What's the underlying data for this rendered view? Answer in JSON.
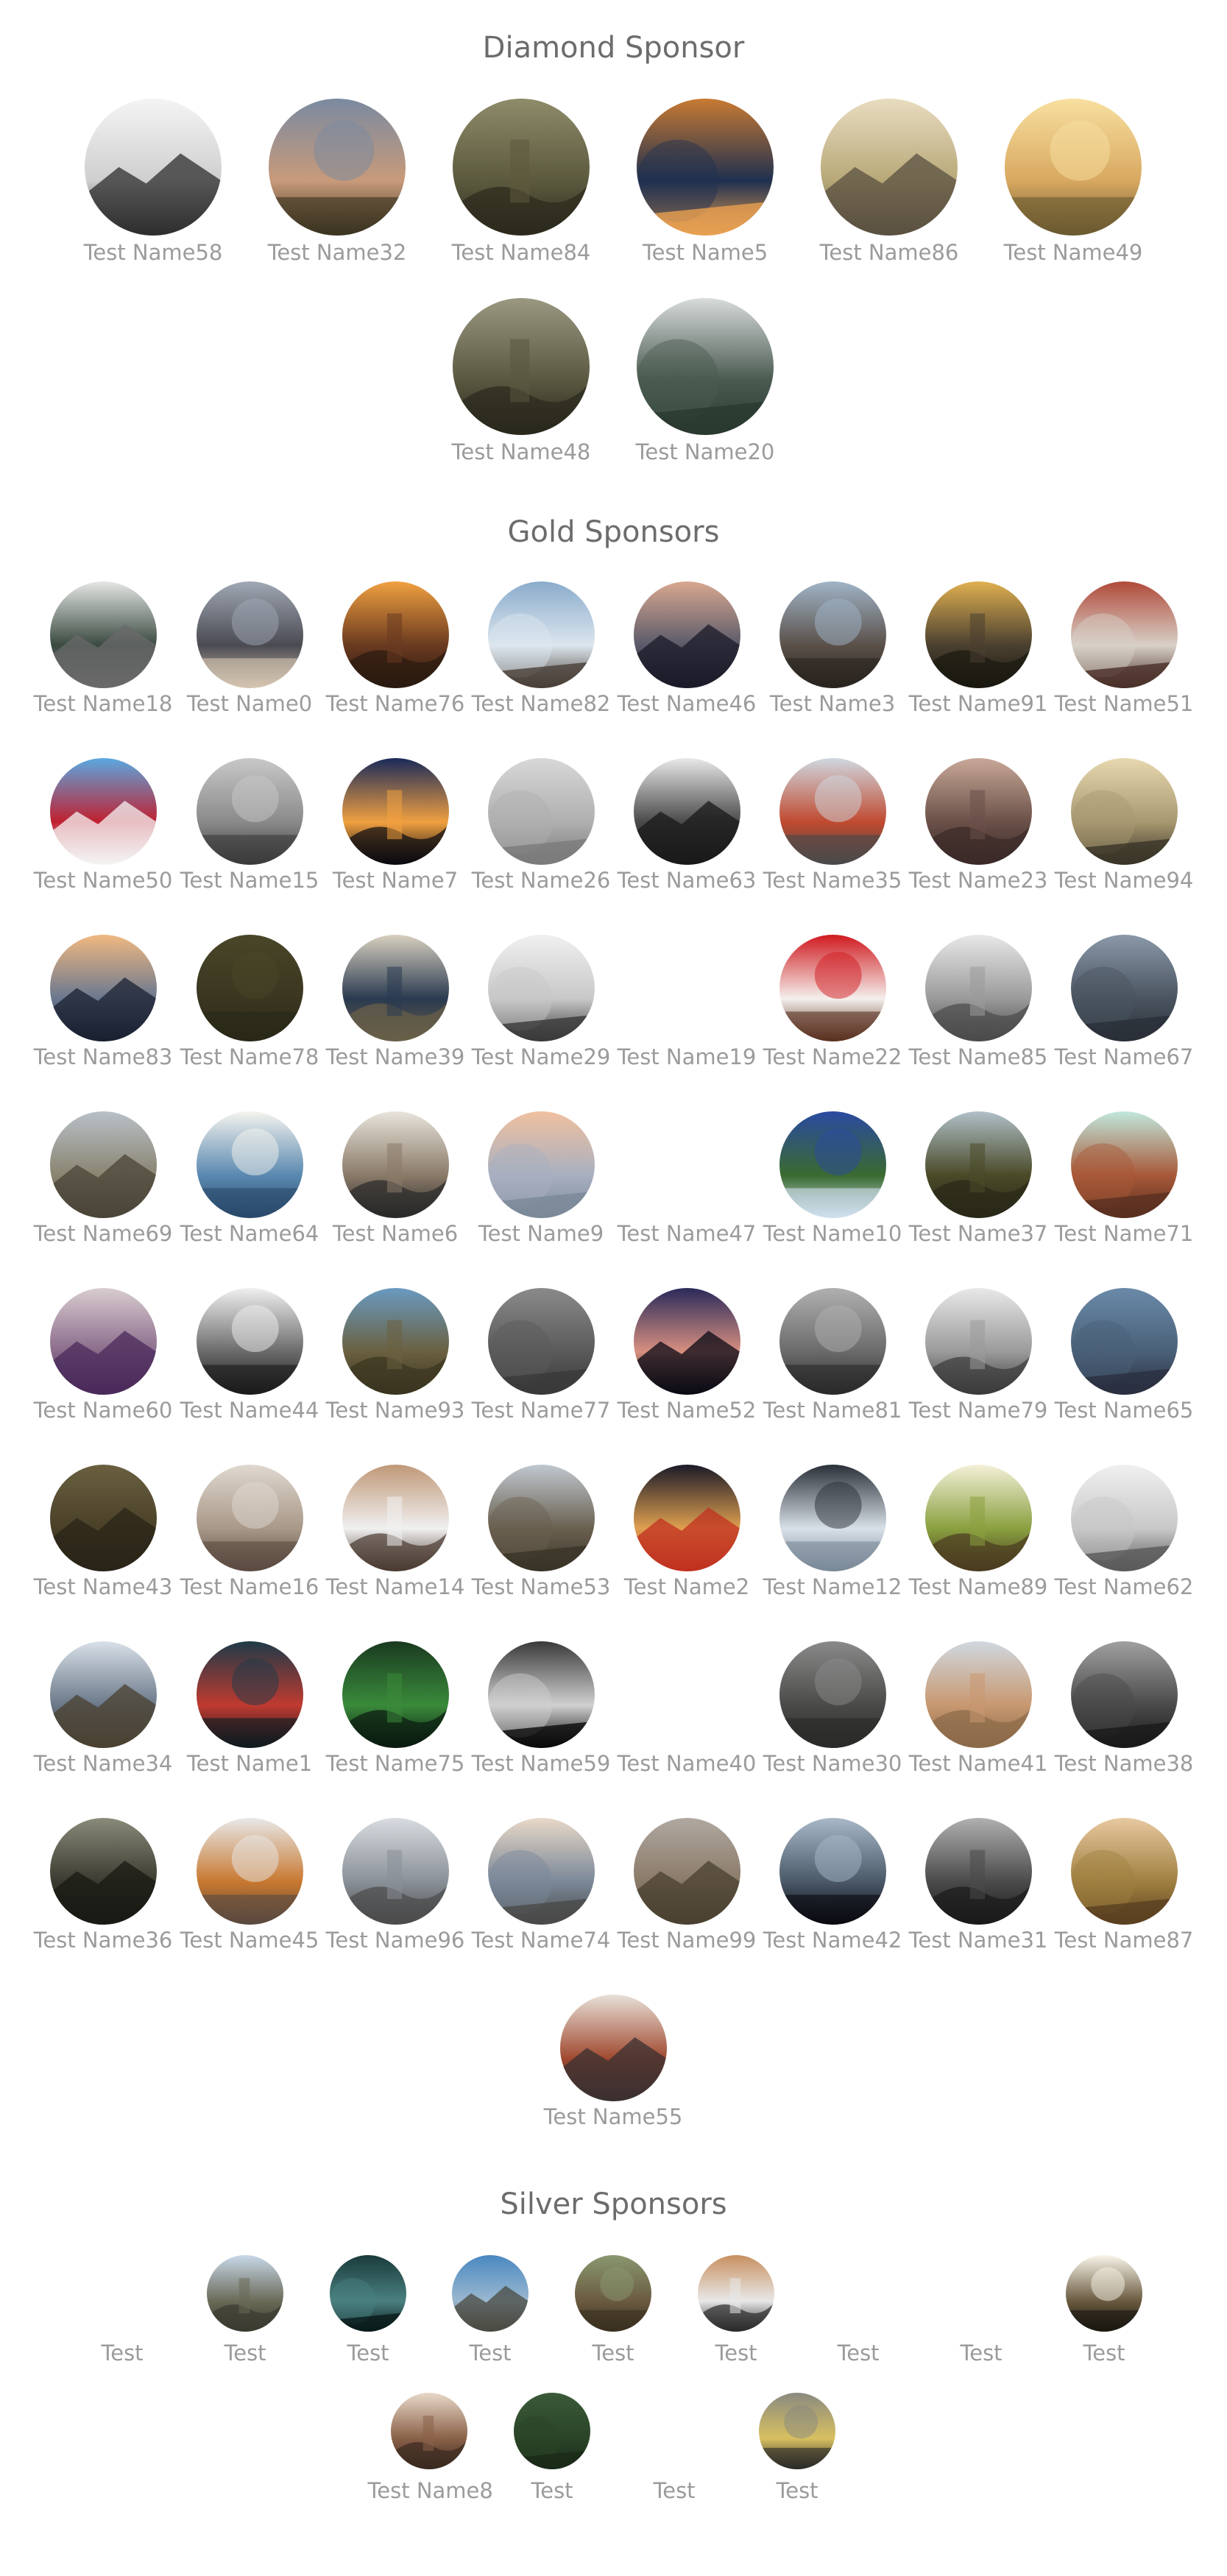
{
  "sections": [
    {
      "title": "Diamond Sponsor",
      "sponsors": [
        {
          "name": "Test Name58",
          "icon": "record-player-image",
          "colors": [
            "#f4f4f4",
            "#cfcfcf",
            "#2e2e2e"
          ]
        },
        {
          "name": "Test Name32",
          "icon": "mountain-landscape-image",
          "colors": [
            "#7a8aa0",
            "#c89a7a",
            "#3a3420"
          ]
        },
        {
          "name": "Test Name84",
          "icon": "foggy-forest-image",
          "colors": [
            "#8e8b6a",
            "#5c5a3e",
            "#2c2a1c"
          ]
        },
        {
          "name": "Test Name5",
          "icon": "aerial-terrain-image",
          "colors": [
            "#c87a32",
            "#1f3050",
            "#e9a050"
          ]
        },
        {
          "name": "Test Name86",
          "icon": "harbor-image",
          "colors": [
            "#e8dcc0",
            "#b8a878",
            "#5a5040"
          ]
        },
        {
          "name": "Test Name49",
          "icon": "sunlit-field-image",
          "colors": [
            "#f8e0a0",
            "#d8a860",
            "#6a5a30"
          ]
        },
        {
          "name": "Test Name48",
          "icon": "guitar-headstock-image",
          "colors": [
            "#9a9880",
            "#5a5840",
            "#2a281c"
          ]
        },
        {
          "name": "Test Name20",
          "icon": "misty-valley-image",
          "colors": [
            "#d8dcdc",
            "#4a5a50",
            "#2a3a30"
          ]
        }
      ]
    },
    {
      "title": "Gold Sponsors",
      "sponsors": [
        {
          "name": "Test Name18",
          "icon": "forest-road-image",
          "colors": [
            "#e4e6e4",
            "#3a4a40",
            "#6a6a6a"
          ]
        },
        {
          "name": "Test Name0",
          "icon": "tower-image",
          "colors": [
            "#a0a8b4",
            "#4a4a52",
            "#d4c4b0"
          ]
        },
        {
          "name": "Test Name76",
          "icon": "railway-sunset-image",
          "colors": [
            "#f0a040",
            "#6a3a20",
            "#2a1a10"
          ]
        },
        {
          "name": "Test Name82",
          "icon": "pier-image",
          "colors": [
            "#8aaccc",
            "#dce6ee",
            "#4a4038"
          ]
        },
        {
          "name": "Test Name46",
          "icon": "person-at-dusk-image",
          "colors": [
            "#d8a890",
            "#5a5a6a",
            "#1a1a28"
          ]
        },
        {
          "name": "Test Name3",
          "icon": "boardwalk-image",
          "colors": [
            "#a0b4c8",
            "#5a5048",
            "#2a2420"
          ]
        },
        {
          "name": "Test Name91",
          "icon": "sunset-lake-image",
          "colors": [
            "#e0b050",
            "#4a4030",
            "#1a1810"
          ]
        },
        {
          "name": "Test Name51",
          "icon": "brick-building-image",
          "colors": [
            "#b04a3a",
            "#d8d0c8",
            "#4a3028"
          ]
        },
        {
          "name": "Test Name50",
          "icon": "flag-image",
          "colors": [
            "#5aa8e0",
            "#c02030",
            "#f4f4f4"
          ]
        },
        {
          "name": "Test Name15",
          "icon": "fog-trees-image",
          "colors": [
            "#c8c8c8",
            "#8a8a8a",
            "#3a3a3a"
          ]
        },
        {
          "name": "Test Name7",
          "icon": "night-horizon-image",
          "colors": [
            "#1a2a5a",
            "#f0a040",
            "#0a0a10"
          ]
        },
        {
          "name": "Test Name26",
          "icon": "bird-sky-image",
          "colors": [
            "#d8d8d8",
            "#b0b0b0",
            "#7a7a7a"
          ]
        },
        {
          "name": "Test Name63",
          "icon": "power-lines-image",
          "colors": [
            "#e8e8e8",
            "#4a4a4a",
            "#1a1a1a"
          ]
        },
        {
          "name": "Test Name35",
          "icon": "bridge-image",
          "colors": [
            "#d0d8e0",
            "#c04a30",
            "#4a4a4a"
          ]
        },
        {
          "name": "Test Name23",
          "icon": "reflection-lake-image",
          "colors": [
            "#c8a898",
            "#6a5048",
            "#3a2a28"
          ]
        },
        {
          "name": "Test Name94",
          "icon": "hazy-hills-image",
          "colors": [
            "#e8d8b0",
            "#a89870",
            "#3a3428"
          ]
        },
        {
          "name": "Test Name83",
          "icon": "rocky-shore-sunset-image",
          "colors": [
            "#f0b880",
            "#6a7890",
            "#1a2030"
          ]
        },
        {
          "name": "Test Name78",
          "icon": "moss-texture-image",
          "colors": [
            "#4a4628",
            "#3a3620",
            "#2a2818"
          ]
        },
        {
          "name": "Test Name39",
          "icon": "snowy-cliff-image",
          "colors": [
            "#d8d0c0",
            "#2a3a50",
            "#6a6048"
          ]
        },
        {
          "name": "Test Name29",
          "icon": "snowy-mountain-image",
          "colors": [
            "#f0f0f0",
            "#c8c8c8",
            "#3a3a3a"
          ]
        },
        {
          "name": "Test Name19",
          "icon": "blank-logo",
          "colors": [
            "#ffffff",
            "#ffffff",
            "#ffffff"
          ]
        },
        {
          "name": "Test Name22",
          "icon": "coffee-cup-image",
          "colors": [
            "#d01a20",
            "#f4f0ec",
            "#5a3020"
          ]
        },
        {
          "name": "Test Name85",
          "icon": "glass-dome-image",
          "colors": [
            "#e8e8e8",
            "#9a9a9a",
            "#4a4a4a"
          ]
        },
        {
          "name": "Test Name67",
          "icon": "rail-tracks-image",
          "colors": [
            "#8a98a8",
            "#4a5460",
            "#2a3038"
          ]
        },
        {
          "name": "Test Name69",
          "icon": "misty-coast-image",
          "colors": [
            "#b8c0c8",
            "#8a8470",
            "#4a4438"
          ]
        },
        {
          "name": "Test Name64",
          "icon": "glass-building-image",
          "colors": [
            "#f4f4ee",
            "#5a88b0",
            "#2a4a6a"
          ]
        },
        {
          "name": "Test Name6",
          "icon": "gallery-wall-image",
          "colors": [
            "#e8e4dc",
            "#8a7a68",
            "#2a2a2a"
          ]
        },
        {
          "name": "Test Name9",
          "icon": "pastel-sea-image",
          "colors": [
            "#f0c0a0",
            "#a8b0c0",
            "#7a8898"
          ]
        },
        {
          "name": "Test Name47",
          "icon": "blank-logo",
          "colors": [
            "#ffffff",
            "#ffffff",
            "#ffffff"
          ]
        },
        {
          "name": "Test Name10",
          "icon": "bluebonnets-image",
          "colors": [
            "#2a4aa0",
            "#3a6a30",
            "#d0e0f0"
          ]
        },
        {
          "name": "Test Name37",
          "icon": "grass-field-image",
          "colors": [
            "#b0c0c8",
            "#4a4a28",
            "#2a2818"
          ]
        },
        {
          "name": "Test Name71",
          "icon": "arch-structure-image",
          "colors": [
            "#c0e8dc",
            "#a85838",
            "#5a3020"
          ]
        },
        {
          "name": "Test Name60",
          "icon": "lavender-field-image",
          "colors": [
            "#d8ccd0",
            "#8a6a8a",
            "#4a2a5a"
          ]
        },
        {
          "name": "Test Name44",
          "icon": "cloudy-mountains-image",
          "colors": [
            "#f0f0f0",
            "#6a6a6a",
            "#1a1a1a"
          ]
        },
        {
          "name": "Test Name93",
          "icon": "coastal-cliff-image",
          "colors": [
            "#6a9ac0",
            "#6a6040",
            "#3a3420"
          ]
        },
        {
          "name": "Test Name77",
          "icon": "portrait-blur-image",
          "colors": [
            "#8a8a8a",
            "#5a5a5a",
            "#3a3a3a"
          ]
        },
        {
          "name": "Test Name52",
          "icon": "dusk-horizon-image",
          "colors": [
            "#2a2a5a",
            "#d89080",
            "#0a0a14"
          ]
        },
        {
          "name": "Test Name81",
          "icon": "stone-arch-image",
          "colors": [
            "#b0b0b0",
            "#6a6a6a",
            "#2a2a2a"
          ]
        },
        {
          "name": "Test Name79",
          "icon": "statue-of-liberty-image",
          "colors": [
            "#e8e8e8",
            "#9a9a9a",
            "#3a3a3a"
          ]
        },
        {
          "name": "Test Name65",
          "icon": "hooded-figure-image",
          "colors": [
            "#6a8aa8",
            "#4a6078",
            "#2a3040"
          ]
        },
        {
          "name": "Test Name43",
          "icon": "rock-forest-image",
          "colors": [
            "#6a6040",
            "#4a4028",
            "#2a2418"
          ]
        },
        {
          "name": "Test Name16",
          "icon": "station-hall-image",
          "colors": [
            "#e0d8d0",
            "#a89888",
            "#5a4a40"
          ]
        },
        {
          "name": "Test Name14",
          "icon": "jeep-building-image",
          "colors": [
            "#c09878",
            "#f0f0f0",
            "#4a3a30"
          ]
        },
        {
          "name": "Test Name53",
          "icon": "wooden-bridge-image",
          "colors": [
            "#c0c8d0",
            "#6a6050",
            "#3a3428"
          ]
        },
        {
          "name": "Test Name2",
          "icon": "bokeh-lights-image",
          "colors": [
            "#1a1a28",
            "#e0a050",
            "#c03020"
          ]
        },
        {
          "name": "Test Name12",
          "icon": "light-rays-image",
          "colors": [
            "#2a3038",
            "#d8e0e8",
            "#7a8898"
          ]
        },
        {
          "name": "Test Name89",
          "icon": "mushroom-image",
          "colors": [
            "#f4f0d8",
            "#8aa040",
            "#4a3a20"
          ]
        },
        {
          "name": "Test Name62",
          "icon": "foggy-pier-image",
          "colors": [
            "#f0f0f0",
            "#c8c8c8",
            "#5a5a5a"
          ]
        },
        {
          "name": "Test Name34",
          "icon": "crashing-waves-image",
          "colors": [
            "#d8e0e8",
            "#6a7888",
            "#4a4030"
          ]
        },
        {
          "name": "Test Name1",
          "icon": "red-umbrella-image",
          "colors": [
            "#1e3a48",
            "#c03a30",
            "#0e1a20"
          ]
        },
        {
          "name": "Test Name75",
          "icon": "green-leaves-image",
          "colors": [
            "#1a3a20",
            "#3a8a3a",
            "#0a1a10"
          ]
        },
        {
          "name": "Test Name59",
          "icon": "wave-pattern-image",
          "colors": [
            "#3a3a3a",
            "#d0d0d0",
            "#0a0a0a"
          ]
        },
        {
          "name": "Test Name40",
          "icon": "blank-logo",
          "colors": [
            "#ffffff",
            "#ffffff",
            "#ffffff"
          ]
        },
        {
          "name": "Test Name30",
          "icon": "dark-forest-image",
          "colors": [
            "#8a8a8a",
            "#4a4a48",
            "#2a2a28"
          ]
        },
        {
          "name": "Test Name41",
          "icon": "highland-cattle-image",
          "colors": [
            "#d0d8e0",
            "#c89870",
            "#8a6a48"
          ]
        },
        {
          "name": "Test Name38",
          "icon": "interior-hall-image",
          "colors": [
            "#a0a0a0",
            "#4a4a4a",
            "#1a1a1a"
          ]
        },
        {
          "name": "Test Name36",
          "icon": "waterfall-cliff-image",
          "colors": [
            "#8a8a7a",
            "#3a3a30",
            "#1a1a14"
          ]
        },
        {
          "name": "Test Name45",
          "icon": "hiker-coat-image",
          "colors": [
            "#e8e8e8",
            "#c87830",
            "#5a4a40"
          ]
        },
        {
          "name": "Test Name96",
          "icon": "wave-splash-image",
          "colors": [
            "#d8dce0",
            "#8a9098",
            "#4a4a4a"
          ]
        },
        {
          "name": "Test Name74",
          "icon": "cloudy-peaks-image",
          "colors": [
            "#e8d8c8",
            "#7a8898",
            "#4a4a48"
          ]
        },
        {
          "name": "Test Name99",
          "icon": "dusty-plain-image",
          "colors": [
            "#b0a8a0",
            "#8a7a68",
            "#4a4030"
          ]
        },
        {
          "name": "Test Name42",
          "icon": "silhouette-person-image",
          "colors": [
            "#a8b8c8",
            "#4a5868",
            "#0a0a10"
          ]
        },
        {
          "name": "Test Name31",
          "icon": "bare-trees-image",
          "colors": [
            "#b0b0b0",
            "#4a4a4a",
            "#1a1a1a"
          ]
        },
        {
          "name": "Test Name87",
          "icon": "cactus-field-image",
          "colors": [
            "#e8c8a0",
            "#a08040",
            "#5a4020"
          ]
        },
        {
          "name": "Test Name55",
          "icon": "hand-tablet-image",
          "colors": [
            "#e8e0d8",
            "#a04a30",
            "#3a3030"
          ]
        }
      ]
    },
    {
      "title": "Silver Sponsors",
      "sponsors": [
        {
          "name": "Test",
          "icon": "blank-logo",
          "colors": [
            "#ffffff",
            "#ffffff",
            "#ffffff"
          ]
        },
        {
          "name": "Test",
          "icon": "mountain-road-image",
          "colors": [
            "#c8d8e8",
            "#6a6a58",
            "#3a3a30"
          ]
        },
        {
          "name": "Test",
          "icon": "night-water-image",
          "colors": [
            "#1a3a3a",
            "#4a8080",
            "#0a1a1a"
          ]
        },
        {
          "name": "Test",
          "icon": "blue-lake-image",
          "colors": [
            "#4a88c0",
            "#9ab8d0",
            "#4a4a40"
          ]
        },
        {
          "name": "Test",
          "icon": "rocky-valley-image",
          "colors": [
            "#8a9870",
            "#6a5a40",
            "#3a3020"
          ]
        },
        {
          "name": "Test",
          "icon": "laptop-desk-image",
          "colors": [
            "#c89060",
            "#e8e8e8",
            "#2a2a2a"
          ]
        },
        {
          "name": "Test",
          "icon": "blank-logo",
          "colors": [
            "#ffffff",
            "#ffffff",
            "#ffffff"
          ]
        },
        {
          "name": "Test",
          "icon": "blank-logo",
          "colors": [
            "#ffffff",
            "#ffffff",
            "#ffffff"
          ]
        },
        {
          "name": "Test",
          "icon": "tunnel-light-image",
          "colors": [
            "#f8f4e8",
            "#6a5a40",
            "#1a1810"
          ]
        },
        {
          "name": "Test Name8",
          "icon": "latte-cup-image",
          "colors": [
            "#e8d8c8",
            "#8a6048",
            "#3a2a20"
          ]
        },
        {
          "name": "Test",
          "icon": "aerial-forest-image",
          "colors": [
            "#3a5a38",
            "#2a4428",
            "#1a2a18"
          ]
        },
        {
          "name": "Test",
          "icon": "blank-logo",
          "colors": [
            "#ffffff",
            "#ffffff",
            "#ffffff"
          ]
        },
        {
          "name": "Test",
          "icon": "city-street-image",
          "colors": [
            "#8a8a80",
            "#d8c060",
            "#2a2a28"
          ]
        }
      ]
    }
  ]
}
